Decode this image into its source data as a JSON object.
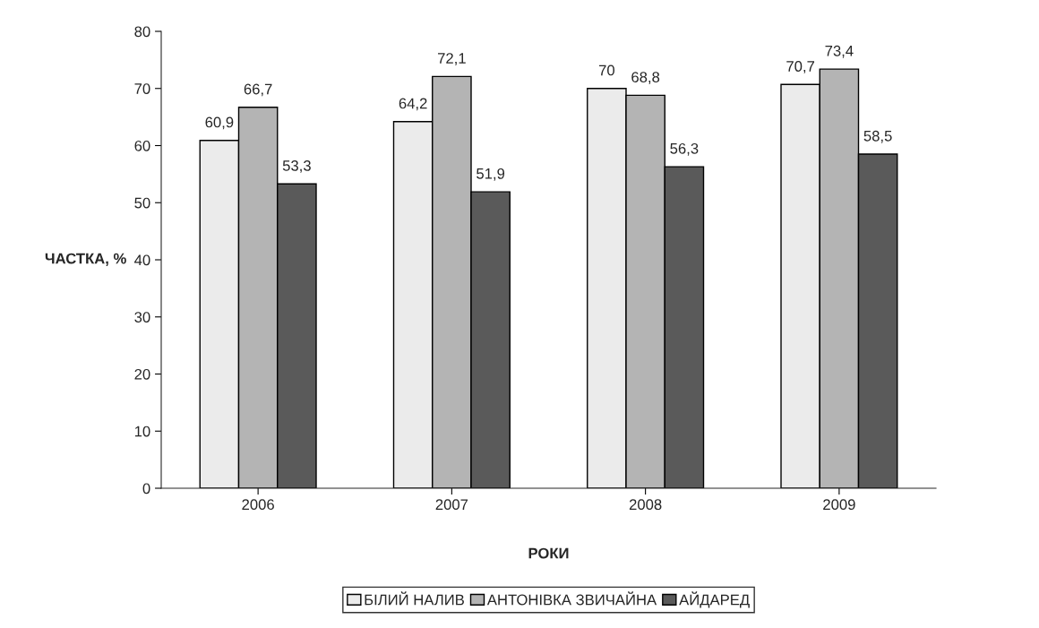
{
  "chart_data": {
    "type": "bar",
    "xlabel": "РОКИ",
    "ylabel": "ЧАСТКА, %",
    "categories": [
      "2006",
      "2007",
      "2008",
      "2009"
    ],
    "series": [
      {
        "name": "БІЛИЙ НАЛИВ",
        "color": "#ebebeb",
        "values": [
          60.9,
          64.2,
          70,
          70.7
        ],
        "value_labels": [
          "60,9",
          "64,2",
          "70",
          "70,7"
        ]
      },
      {
        "name": "АНТОНІВКА ЗВИЧАЙНА",
        "color": "#b4b4b4",
        "values": [
          66.7,
          72.1,
          68.8,
          73.4
        ],
        "value_labels": [
          "66,7",
          "72,1",
          "68,8",
          "73,4"
        ]
      },
      {
        "name": "АЙДАРЕД",
        "color": "#5a5a5a",
        "values": [
          53.3,
          51.9,
          56.3,
          58.5
        ],
        "value_labels": [
          "53,3",
          "51,9",
          "56,3",
          "58,5"
        ]
      }
    ],
    "ylim": [
      0,
      80
    ],
    "yticks": [
      0,
      10,
      20,
      30,
      40,
      50,
      60,
      70,
      80
    ],
    "grid": false,
    "legend": "bottom"
  }
}
